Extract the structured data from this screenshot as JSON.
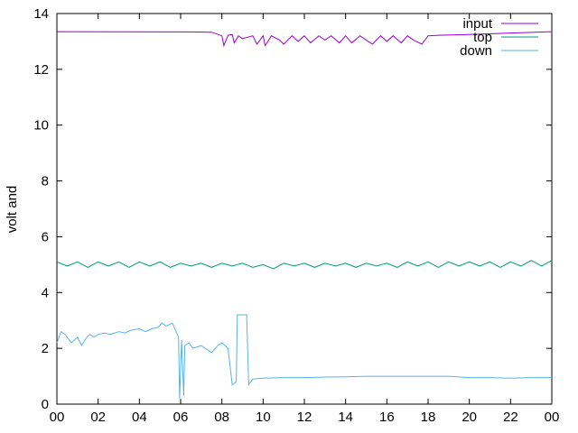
{
  "chart_data": {
    "type": "line",
    "title": "",
    "xlabel": "",
    "ylabel": "volt and",
    "xlim": [
      0,
      24
    ],
    "ylim": [
      0,
      14
    ],
    "x_ticks": [
      "00",
      "02",
      "04",
      "06",
      "08",
      "10",
      "12",
      "14",
      "16",
      "18",
      "20",
      "22",
      "00"
    ],
    "y_ticks": [
      "0",
      "2",
      "4",
      "6",
      "8",
      "10",
      "12",
      "14"
    ],
    "grid": false,
    "legend_position": "top-right",
    "series": [
      {
        "name": "input",
        "color": "#9400d3",
        "x": [
          0,
          6.5,
          7.5,
          8.0,
          8.1,
          8.3,
          8.5,
          8.6,
          8.8,
          9.0,
          9.5,
          9.7,
          10.0,
          10.1,
          10.4,
          10.8,
          11.0,
          11.4,
          11.7,
          12.0,
          12.3,
          12.7,
          13.0,
          13.3,
          13.7,
          14.0,
          14.3,
          14.7,
          15.0,
          15.3,
          15.7,
          16.0,
          16.3,
          16.7,
          17.0,
          17.3,
          17.7,
          18.0,
          18.5,
          20.0,
          22.0,
          24.0
        ],
        "values": [
          13.35,
          13.34,
          13.33,
          13.2,
          12.85,
          13.22,
          13.25,
          12.95,
          13.2,
          13.1,
          13.2,
          12.9,
          13.2,
          12.85,
          13.2,
          13.05,
          12.9,
          13.2,
          13.0,
          13.2,
          12.95,
          13.2,
          13.05,
          13.2,
          12.95,
          13.2,
          12.95,
          13.2,
          13.05,
          12.9,
          13.2,
          13.0,
          13.2,
          12.95,
          13.2,
          13.05,
          12.9,
          13.2,
          13.22,
          13.25,
          13.3,
          13.35
        ]
      },
      {
        "name": "top",
        "color": "#009e73",
        "x": [
          0,
          0.5,
          1.0,
          1.5,
          2.0,
          2.5,
          3.0,
          3.5,
          4.0,
          4.5,
          5.0,
          5.5,
          6.0,
          6.5,
          7.0,
          7.5,
          8.0,
          8.5,
          9.0,
          9.5,
          10.0,
          10.5,
          11.0,
          11.5,
          12.0,
          12.5,
          13.0,
          13.5,
          14.0,
          14.5,
          15.0,
          15.5,
          16.0,
          16.5,
          17.0,
          17.5,
          18.0,
          18.5,
          19.0,
          19.5,
          20.0,
          20.5,
          21.0,
          21.5,
          22.0,
          22.5,
          23.0,
          23.5,
          24.0
        ],
        "values": [
          5.1,
          4.95,
          5.1,
          4.9,
          5.1,
          4.95,
          5.1,
          4.9,
          5.1,
          4.95,
          5.1,
          4.9,
          5.05,
          4.95,
          5.05,
          4.9,
          5.05,
          4.95,
          5.05,
          4.9,
          5.0,
          4.85,
          5.05,
          4.95,
          5.05,
          4.9,
          5.05,
          4.95,
          5.05,
          4.9,
          5.05,
          4.95,
          5.05,
          4.9,
          5.1,
          4.95,
          5.1,
          4.9,
          5.1,
          4.95,
          5.1,
          4.95,
          5.1,
          4.9,
          5.1,
          4.95,
          5.15,
          4.95,
          5.15
        ]
      },
      {
        "name": "down",
        "color": "#56b4e9",
        "x": [
          0,
          0.2,
          0.4,
          0.7,
          1.0,
          1.2,
          1.4,
          1.6,
          1.8,
          2.0,
          2.3,
          2.6,
          3.0,
          3.3,
          3.6,
          4.0,
          4.3,
          4.6,
          4.9,
          5.1,
          5.3,
          5.6,
          5.9,
          5.95,
          6.05,
          6.15,
          6.2,
          6.4,
          6.6,
          7.0,
          7.5,
          7.8,
          8.0,
          8.3,
          8.5,
          8.7,
          8.75,
          9.0,
          9.2,
          9.3,
          9.5,
          9.8,
          10.0,
          11.0,
          12.0,
          13.0,
          14.0,
          15.0,
          16.0,
          17.0,
          18.0,
          19.0,
          20.0,
          21.0,
          22.0,
          23.0,
          23.5,
          24.0
        ],
        "values": [
          2.2,
          2.6,
          2.5,
          2.2,
          2.4,
          2.1,
          2.35,
          2.5,
          2.4,
          2.5,
          2.55,
          2.5,
          2.6,
          2.55,
          2.65,
          2.7,
          2.6,
          2.7,
          2.75,
          2.9,
          2.8,
          2.9,
          2.4,
          0.2,
          2.3,
          0.3,
          2.1,
          2.2,
          2.0,
          2.1,
          1.85,
          2.1,
          2.2,
          2.0,
          0.7,
          0.8,
          3.2,
          3.2,
          3.2,
          0.7,
          0.9,
          0.92,
          0.93,
          0.95,
          0.95,
          0.97,
          0.98,
          1.0,
          1.0,
          1.0,
          1.0,
          1.0,
          0.95,
          0.95,
          0.93,
          0.95,
          0.95,
          0.95
        ]
      }
    ]
  }
}
